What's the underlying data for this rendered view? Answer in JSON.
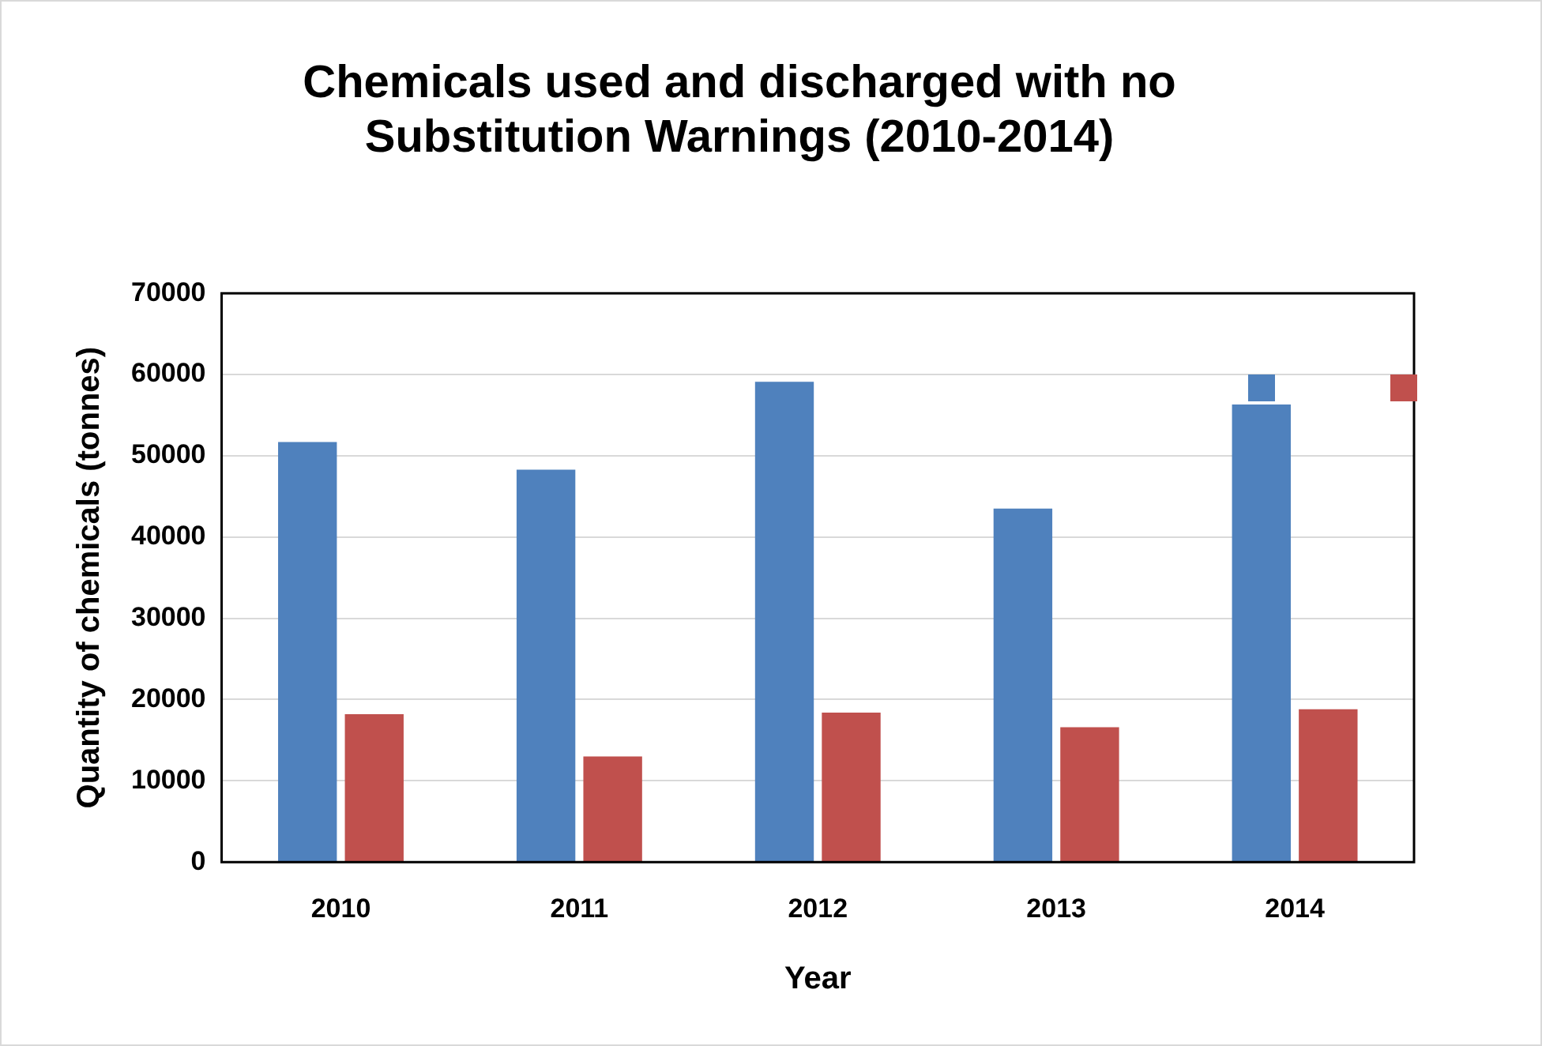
{
  "chart_data": {
    "type": "bar",
    "title": "Chemicals used and discharged with no Substitution Warnings (2010-2014)",
    "xlabel": "Year",
    "ylabel": "Quantity of chemicals (tonnes)",
    "categories": [
      "2010",
      "2011",
      "2012",
      "2013",
      "2014"
    ],
    "series": [
      {
        "color": "#4f81bd",
        "values": [
          51700,
          48300,
          59100,
          43500,
          56300
        ]
      },
      {
        "color": "#c0504d",
        "values": [
          18200,
          13000,
          18400,
          16600,
          18800
        ]
      }
    ],
    "ylim": [
      0,
      70000
    ],
    "yticks": [
      0,
      10000,
      20000,
      30000,
      40000,
      50000,
      60000,
      70000
    ],
    "grid": "y"
  }
}
